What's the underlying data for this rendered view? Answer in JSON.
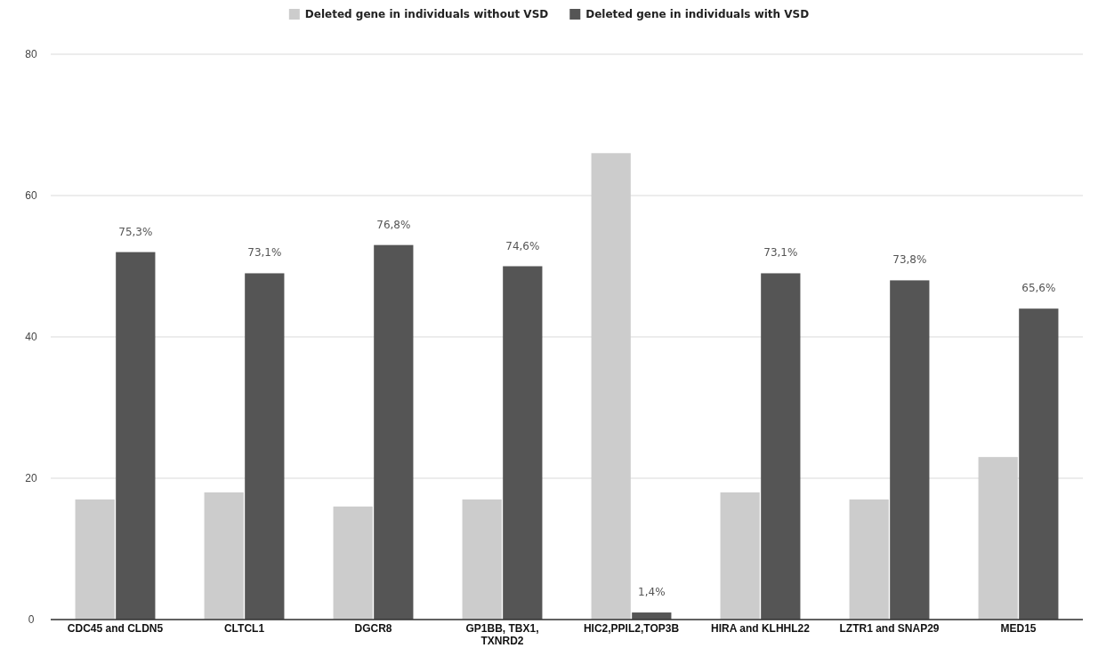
{
  "chart_data": {
    "type": "bar",
    "categories": [
      "CDC45 and CLDN5",
      "CLTCL1",
      "DGCR8",
      "GP1BB, TBX1, TXNRD2",
      "HIC2,PPIL2,TOP3B",
      "HIRA and KLHHL22",
      "LZTR1 and SNAP29",
      "MED15"
    ],
    "series": [
      {
        "name": "Deleted gene in individuals without VSD",
        "color": "#cccccc",
        "values": [
          17,
          18,
          16,
          17,
          66,
          18,
          17,
          23
        ]
      },
      {
        "name": "Deleted gene in individuals with VSD",
        "color": "#555555",
        "values": [
          52,
          49,
          53,
          50,
          1,
          49,
          48,
          44
        ]
      }
    ],
    "annotations": [
      {
        "text": "75,3%",
        "x": "CDC45 and CLDN5",
        "y": 52
      },
      {
        "text": "73,1%",
        "x": "CLTCL1",
        "y": 49
      },
      {
        "text": "76,8%",
        "x": "DGCR8",
        "y": 53
      },
      {
        "text": "74,6%",
        "x": "GP1BB, TBX1, TXNRD2",
        "y": 50
      },
      {
        "text": "1,4%",
        "x": "HIC2,PPIL2,TOP3B",
        "y": 1
      },
      {
        "text": "73,1%",
        "x": "HIRA and KLHHL22",
        "y": 49
      },
      {
        "text": "73,8%",
        "x": "LZTR1 and SNAP29",
        "y": 48
      },
      {
        "text": "65,6%",
        "x": "MED15",
        "y": 44
      }
    ],
    "ylim": [
      0,
      80
    ],
    "yticks": [
      0,
      20,
      40,
      60,
      80
    ],
    "grid": "y",
    "legend": "top"
  }
}
